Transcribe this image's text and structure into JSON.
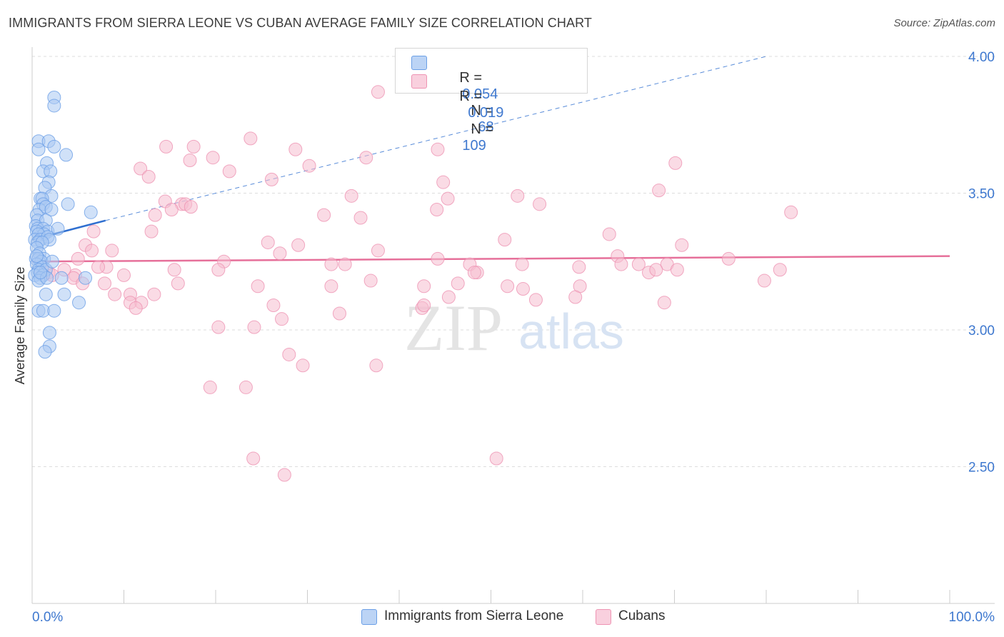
{
  "title": "IMMIGRANTS FROM SIERRA LEONE VS CUBAN AVERAGE FAMILY SIZE CORRELATION CHART",
  "source": "Source: ZipAtlas.com",
  "legend": {
    "row1": {
      "r_label": "R =",
      "r_value": "0.054",
      "n_label": "N =",
      "n_value": "68"
    },
    "row2": {
      "r_label": "R =",
      "r_value": "0.019",
      "n_label": "N =",
      "n_value": "109"
    }
  },
  "bottom_legend": {
    "series1": "Immigrants from Sierra Leone",
    "series2": "Cubans"
  },
  "colors": {
    "blue_fill": "#a9c8f3",
    "blue_stroke": "#6b9fe6",
    "blue_line": "#2f6fd0",
    "pink_fill": "#f6bdd0",
    "pink_stroke": "#ee94b3",
    "pink_line": "#e6709a",
    "tick_label": "#3e78cf",
    "grid": "#dddddd"
  },
  "watermark": {
    "part1": "ZIP",
    "part2": "atlas"
  },
  "chart_data": {
    "type": "scatter",
    "title": "IMMIGRANTS FROM SIERRA LEONE VS CUBAN AVERAGE FAMILY SIZE CORRELATION CHART",
    "xlabel": "",
    "ylabel": "Average Family Size",
    "xlim": [
      0,
      100
    ],
    "ylim": [
      2.0,
      4.05
    ],
    "x_tick_labels": [
      "0.0%",
      "100.0%"
    ],
    "y_ticks": [
      2.5,
      3.0,
      3.5,
      4.0
    ],
    "y_tick_labels": [
      "2.50",
      "3.00",
      "3.50",
      "4.00"
    ],
    "grid": true,
    "series": [
      {
        "name": "Immigrants from Sierra Leone",
        "R": 0.054,
        "N": 68,
        "trend": {
          "x": [
            0,
            8
          ],
          "y": [
            3.33,
            3.4
          ],
          "dashed_to": [
            80,
            4.0
          ]
        },
        "points": [
          [
            2.4,
            3.85
          ],
          [
            2.4,
            3.82
          ],
          [
            0.7,
            3.69
          ],
          [
            1.8,
            3.69
          ],
          [
            2.4,
            3.67
          ],
          [
            0.7,
            3.66
          ],
          [
            3.7,
            3.64
          ],
          [
            1.6,
            3.61
          ],
          [
            1.2,
            3.58
          ],
          [
            2.0,
            3.58
          ],
          [
            1.8,
            3.54
          ],
          [
            1.4,
            3.52
          ],
          [
            0.9,
            3.48
          ],
          [
            2.1,
            3.49
          ],
          [
            1.1,
            3.48
          ],
          [
            1.2,
            3.46
          ],
          [
            3.9,
            3.46
          ],
          [
            0.8,
            3.44
          ],
          [
            1.5,
            3.45
          ],
          [
            2.1,
            3.44
          ],
          [
            0.5,
            3.42
          ],
          [
            6.4,
            3.43
          ],
          [
            0.6,
            3.4
          ],
          [
            1.5,
            3.4
          ],
          [
            0.4,
            3.38
          ],
          [
            0.6,
            3.37
          ],
          [
            1.2,
            3.37
          ],
          [
            1.7,
            3.36
          ],
          [
            2.8,
            3.37
          ],
          [
            0.5,
            3.36
          ],
          [
            1.3,
            3.35
          ],
          [
            0.7,
            3.35
          ],
          [
            0.3,
            3.33
          ],
          [
            0.9,
            3.33
          ],
          [
            1.7,
            3.34
          ],
          [
            1.9,
            3.33
          ],
          [
            0.6,
            3.32
          ],
          [
            1.1,
            3.32
          ],
          [
            0.5,
            3.3
          ],
          [
            0.8,
            3.28
          ],
          [
            0.4,
            3.26
          ],
          [
            1.3,
            3.26
          ],
          [
            0.7,
            3.26
          ],
          [
            1.0,
            3.25
          ],
          [
            0.5,
            3.24
          ],
          [
            1.1,
            3.23
          ],
          [
            0.7,
            3.22
          ],
          [
            1.5,
            3.22
          ],
          [
            0.6,
            3.21
          ],
          [
            0.3,
            3.2
          ],
          [
            1.2,
            3.2
          ],
          [
            0.9,
            3.19
          ],
          [
            3.2,
            3.19
          ],
          [
            5.8,
            3.19
          ],
          [
            0.7,
            3.18
          ],
          [
            1.6,
            3.19
          ],
          [
            1.5,
            3.13
          ],
          [
            3.5,
            3.13
          ],
          [
            5.1,
            3.1
          ],
          [
            0.7,
            3.07
          ],
          [
            1.2,
            3.07
          ],
          [
            2.4,
            3.07
          ],
          [
            1.9,
            2.99
          ],
          [
            1.9,
            2.94
          ],
          [
            1.4,
            2.92
          ],
          [
            0.5,
            3.27
          ],
          [
            2.2,
            3.25
          ],
          [
            0.9,
            3.21
          ]
        ]
      },
      {
        "name": "Cubans",
        "R": 0.019,
        "N": 109,
        "trend": {
          "x": [
            0,
            100
          ],
          "y": [
            3.25,
            3.27
          ]
        },
        "points": [
          [
            37.7,
            3.87
          ],
          [
            23.8,
            3.7
          ],
          [
            14.6,
            3.67
          ],
          [
            17.6,
            3.67
          ],
          [
            28.7,
            3.66
          ],
          [
            44.2,
            3.66
          ],
          [
            19.7,
            3.63
          ],
          [
            36.4,
            3.63
          ],
          [
            17.2,
            3.62
          ],
          [
            30.2,
            3.6
          ],
          [
            70.1,
            3.61
          ],
          [
            11.8,
            3.59
          ],
          [
            21.5,
            3.58
          ],
          [
            12.7,
            3.56
          ],
          [
            26.1,
            3.55
          ],
          [
            44.8,
            3.54
          ],
          [
            68.3,
            3.51
          ],
          [
            34.8,
            3.49
          ],
          [
            52.9,
            3.49
          ],
          [
            45.3,
            3.48
          ],
          [
            14.5,
            3.47
          ],
          [
            16.3,
            3.46
          ],
          [
            16.7,
            3.46
          ],
          [
            17.3,
            3.45
          ],
          [
            55.3,
            3.46
          ],
          [
            15.2,
            3.44
          ],
          [
            44.1,
            3.44
          ],
          [
            13.4,
            3.42
          ],
          [
            31.8,
            3.42
          ],
          [
            35.8,
            3.41
          ],
          [
            82.7,
            3.43
          ],
          [
            13.0,
            3.36
          ],
          [
            6.7,
            3.36
          ],
          [
            62.9,
            3.35
          ],
          [
            51.5,
            3.33
          ],
          [
            25.7,
            3.32
          ],
          [
            5.8,
            3.31
          ],
          [
            29.0,
            3.31
          ],
          [
            70.8,
            3.31
          ],
          [
            6.5,
            3.29
          ],
          [
            8.7,
            3.29
          ],
          [
            37.7,
            3.29
          ],
          [
            5.0,
            3.26
          ],
          [
            63.8,
            3.27
          ],
          [
            44.2,
            3.26
          ],
          [
            75.9,
            3.26
          ],
          [
            32.6,
            3.24
          ],
          [
            20.9,
            3.25
          ],
          [
            34.1,
            3.24
          ],
          [
            47.7,
            3.24
          ],
          [
            53.4,
            3.24
          ],
          [
            64.2,
            3.24
          ],
          [
            66.1,
            3.24
          ],
          [
            69.2,
            3.24
          ],
          [
            59.6,
            3.23
          ],
          [
            8.1,
            3.23
          ],
          [
            15.5,
            3.22
          ],
          [
            20.3,
            3.22
          ],
          [
            70.3,
            3.22
          ],
          [
            48.5,
            3.21
          ],
          [
            67.2,
            3.21
          ],
          [
            81.5,
            3.22
          ],
          [
            4.7,
            3.2
          ],
          [
            1.8,
            3.21
          ],
          [
            10.0,
            3.2
          ],
          [
            4.5,
            3.19
          ],
          [
            5.5,
            3.17
          ],
          [
            36.9,
            3.18
          ],
          [
            15.9,
            3.17
          ],
          [
            24.6,
            3.16
          ],
          [
            32.6,
            3.16
          ],
          [
            42.7,
            3.16
          ],
          [
            51.8,
            3.16
          ],
          [
            46.4,
            3.17
          ],
          [
            79.8,
            3.18
          ],
          [
            53.5,
            3.15
          ],
          [
            59.7,
            3.16
          ],
          [
            7.9,
            3.17
          ],
          [
            9.0,
            3.13
          ],
          [
            10.7,
            3.13
          ],
          [
            13.3,
            3.13
          ],
          [
            10.7,
            3.1
          ],
          [
            11.9,
            3.1
          ],
          [
            11.3,
            3.08
          ],
          [
            26.3,
            3.09
          ],
          [
            42.5,
            3.08
          ],
          [
            42.7,
            3.09
          ],
          [
            45.4,
            3.12
          ],
          [
            54.9,
            3.11
          ],
          [
            59.2,
            3.12
          ],
          [
            68.9,
            3.1
          ],
          [
            33.5,
            3.06
          ],
          [
            27.2,
            3.04
          ],
          [
            20.3,
            3.01
          ],
          [
            24.2,
            3.01
          ],
          [
            28.0,
            2.91
          ],
          [
            29.5,
            2.87
          ],
          [
            37.5,
            2.87
          ],
          [
            19.4,
            2.79
          ],
          [
            23.3,
            2.79
          ],
          [
            24.1,
            2.53
          ],
          [
            27.5,
            2.47
          ],
          [
            50.6,
            2.53
          ],
          [
            3.5,
            3.22
          ],
          [
            48.2,
            3.21
          ],
          [
            27.0,
            3.28
          ],
          [
            2.2,
            3.2
          ],
          [
            7.2,
            3.23
          ],
          [
            68.0,
            3.22
          ]
        ]
      }
    ]
  }
}
